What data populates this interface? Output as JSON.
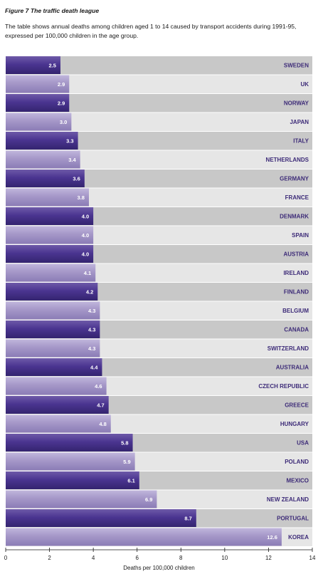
{
  "chart_data": {
    "type": "bar",
    "orientation": "horizontal",
    "title": "Figure 7  The traffic death league",
    "subtitle": "The table shows annual deaths among children aged 1 to 14 caused by transport accidents during 1991-95, expressed per 100,000 children in the age group.",
    "xlabel": "Deaths per 100,000 children",
    "ylabel": "",
    "xlim": [
      0,
      14
    ],
    "xticks": [
      "0",
      "2",
      "4",
      "6",
      "8",
      "10",
      "12",
      "14"
    ],
    "categories": [
      "SWEDEN",
      "UK",
      "NORWAY",
      "JAPAN",
      "ITALY",
      "NETHERLANDS",
      "GERMANY",
      "FRANCE",
      "DENMARK",
      "SPAIN",
      "AUSTRIA",
      "IRELAND",
      "FINLAND",
      "BELGIUM",
      "CANADA",
      "SWITZERLAND",
      "AUSTRALIA",
      "CZECH REPUBLIC",
      "GREECE",
      "HUNGARY",
      "USA",
      "POLAND",
      "MEXICO",
      "NEW ZEALAND",
      "PORTUGAL",
      "KOREA"
    ],
    "values": [
      2.5,
      2.9,
      2.9,
      3.0,
      3.3,
      3.4,
      3.6,
      3.8,
      4.0,
      4.0,
      4.0,
      4.1,
      4.2,
      4.3,
      4.3,
      4.3,
      4.4,
      4.6,
      4.7,
      4.8,
      5.8,
      5.9,
      6.1,
      6.9,
      8.7,
      12.6
    ],
    "value_labels": [
      "2.5",
      "2.9",
      "2.9",
      "3.0",
      "3.3",
      "3.4",
      "3.6",
      "3.8",
      "4.0",
      "4.0",
      "4.0",
      "4.1",
      "4.2",
      "4.3",
      "4.3",
      "4.3",
      "4.4",
      "4.6",
      "4.7",
      "4.8",
      "5.8",
      "5.9",
      "6.1",
      "6.9",
      "8.7",
      "12.6"
    ],
    "grid": false,
    "colors": {
      "bar_dark": "#4b3591",
      "bar_light": "#a597c8",
      "row_dark": "#c8c8c8",
      "row_light": "#e6e6e6",
      "label_text": "#3d2b78"
    }
  }
}
